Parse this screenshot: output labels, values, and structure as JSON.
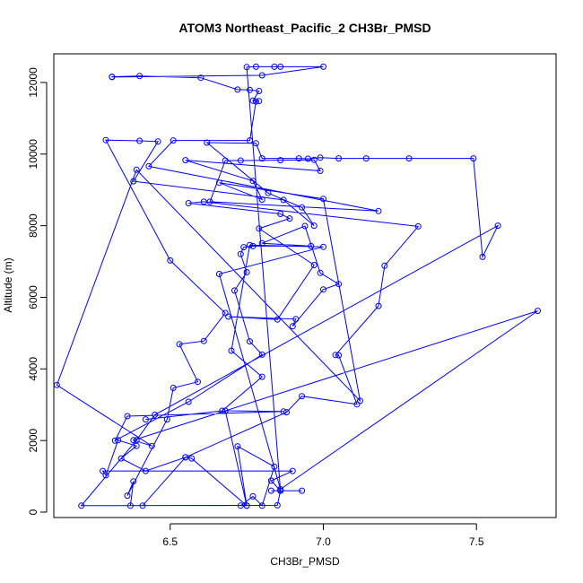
{
  "chart_data": {
    "type": "line",
    "title": "ATOM3 Northeast_Pacific_2 CH3Br_PMSD",
    "xlabel": "CH3Br_PMSD",
    "ylabel": "Altitude (m)",
    "xlim": [
      6.12,
      7.76
    ],
    "ylim": [
      -150,
      12800
    ],
    "xticks": [
      6.5,
      7.0,
      7.5
    ],
    "xtick_labels": [
      "6.5",
      "7.0",
      "7.5"
    ],
    "yticks": [
      0,
      2000,
      4000,
      6000,
      8000,
      10000,
      12000
    ],
    "ytick_labels": [
      "0",
      "2000",
      "4000",
      "6000",
      "8000",
      "10000",
      "12000"
    ],
    "grid": false,
    "line_color": "#0000ff",
    "marker": "open-circle",
    "series": [
      {
        "points": [
          [
            6.83,
            600
          ],
          [
            6.93,
            600
          ],
          [
            6.86,
            600
          ],
          [
            6.83,
            880
          ],
          [
            6.9,
            1150
          ],
          [
            6.28,
            1150
          ],
          [
            6.29,
            1030
          ],
          [
            6.33,
            2010
          ],
          [
            6.39,
            1850
          ],
          [
            6.34,
            1500
          ],
          [
            6.42,
            1150
          ],
          [
            6.55,
            1530
          ],
          [
            6.57,
            1500
          ],
          [
            6.75,
            180
          ],
          [
            6.73,
            180
          ],
          [
            6.77,
            440
          ],
          [
            6.8,
            180
          ],
          [
            6.84,
            1270
          ],
          [
            6.72,
            1840
          ],
          [
            6.75,
            180
          ],
          [
            6.68,
            2830
          ],
          [
            6.87,
            2810
          ],
          [
            6.36,
            2680
          ],
          [
            6.32,
            2000
          ],
          [
            6.56,
            3080
          ],
          [
            6.8,
            4400
          ],
          [
            6.76,
            4770
          ],
          [
            6.71,
            6190
          ],
          [
            6.75,
            6700
          ],
          [
            6.73,
            7210
          ],
          [
            6.74,
            7400
          ],
          [
            6.77,
            7430
          ],
          [
            6.96,
            7430
          ],
          [
            6.8,
            7510
          ],
          [
            6.94,
            7990
          ],
          [
            6.99,
            6680
          ],
          [
            7.05,
            6370
          ],
          [
            7.0,
            6220
          ],
          [
            6.9,
            5190
          ],
          [
            6.91,
            5390
          ],
          [
            6.69,
            5460
          ],
          [
            6.85,
            5380
          ],
          [
            6.97,
            6900
          ],
          [
            6.79,
            7920
          ],
          [
            6.89,
            8200
          ],
          [
            6.86,
            8330
          ],
          [
            6.56,
            8630
          ],
          [
            6.61,
            8670
          ],
          [
            7.31,
            7980
          ],
          [
            7.2,
            6880
          ],
          [
            7.18,
            5760
          ],
          [
            7.04,
            4390
          ],
          [
            7.05,
            4380
          ],
          [
            7.11,
            3010
          ],
          [
            6.93,
            3240
          ],
          [
            6.88,
            2790
          ],
          [
            6.55,
            1530
          ],
          [
            6.41,
            180
          ],
          [
            6.37,
            180
          ],
          [
            6.38,
            860
          ],
          [
            6.36,
            460
          ],
          [
            6.49,
            2590
          ],
          [
            6.51,
            3470
          ],
          [
            6.59,
            3640
          ],
          [
            6.53,
            4690
          ],
          [
            6.61,
            4780
          ],
          [
            6.68,
            5560
          ],
          [
            6.5,
            7030
          ],
          [
            6.29,
            10390
          ],
          [
            6.4,
            10370
          ],
          [
            6.46,
            10350
          ],
          [
            6.38,
            9240
          ],
          [
            6.87,
            8720
          ],
          [
            6.97,
            8000
          ],
          [
            6.93,
            8510
          ],
          [
            6.82,
            8910
          ],
          [
            6.62,
            10320
          ],
          [
            6.78,
            10300
          ],
          [
            6.8,
            9880
          ],
          [
            6.92,
            9880
          ],
          [
            6.95,
            9870
          ],
          [
            6.99,
            9900
          ],
          [
            7.05,
            9880
          ],
          [
            7.14,
            9880
          ],
          [
            7.28,
            9880
          ],
          [
            7.49,
            9880
          ],
          [
            7.52,
            7130
          ],
          [
            7.57,
            8000
          ],
          [
            6.45,
            2720
          ],
          [
            6.39,
            2010
          ],
          [
            6.21,
            180
          ],
          [
            6.85,
            190
          ],
          [
            6.86,
            600
          ],
          [
            6.75,
            12430
          ],
          [
            6.78,
            12440
          ],
          [
            6.84,
            12440
          ],
          [
            6.86,
            12440
          ],
          [
            7.0,
            12440
          ],
          [
            6.8,
            12200
          ],
          [
            6.31,
            12150
          ],
          [
            6.31,
            12160
          ],
          [
            6.4,
            12180
          ],
          [
            6.6,
            12130
          ],
          [
            6.72,
            11800
          ],
          [
            6.76,
            11790
          ],
          [
            6.79,
            11760
          ],
          [
            6.77,
            11490
          ],
          [
            6.79,
            11480
          ],
          [
            6.78,
            11470
          ],
          [
            6.76,
            10380
          ],
          [
            6.51,
            10380
          ],
          [
            6.43,
            9660
          ],
          [
            7.18,
            8410
          ],
          [
            6.63,
            8670
          ],
          [
            6.68,
            9820
          ],
          [
            6.73,
            9820
          ],
          [
            6.86,
            9830
          ],
          [
            6.97,
            9840
          ],
          [
            6.99,
            9530
          ],
          [
            6.55,
            9830
          ],
          [
            6.77,
            9250
          ],
          [
            6.8,
            8730
          ],
          [
            6.66,
            9200
          ],
          [
            7.0,
            8750
          ],
          [
            7.12,
            3110
          ],
          [
            6.39,
            9560
          ],
          [
            6.13,
            3550
          ],
          [
            6.44,
            1850
          ],
          [
            6.38,
            2010
          ],
          [
            7.7,
            5620
          ],
          [
            6.86,
            640
          ],
          [
            6.66,
            6650
          ],
          [
            7.0,
            7410
          ],
          [
            6.76,
            7460
          ],
          [
            6.7,
            4510
          ],
          [
            6.8,
            3780
          ],
          [
            6.67,
            2830
          ],
          [
            6.42,
            2590
          ]
        ]
      }
    ]
  }
}
